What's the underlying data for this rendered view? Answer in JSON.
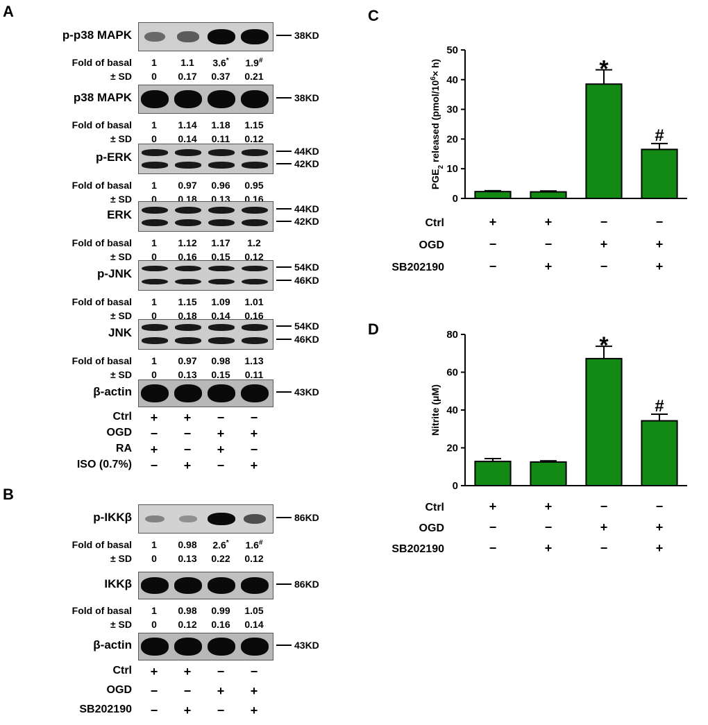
{
  "panels": {
    "A": "A",
    "B": "B",
    "C": "C",
    "D": "D"
  },
  "colors": {
    "bar": "#138a13",
    "bar_edge": "#000000"
  },
  "panelA": {
    "blots": [
      {
        "label": "p-p38 MAPK",
        "kd": [
          "38KD"
        ],
        "fold": {
          "label": "Fold of basal",
          "values": [
            "1",
            "1.1",
            "3.6",
            "1.9"
          ],
          "marks": [
            "",
            "",
            "*",
            "#"
          ]
        },
        "sd": {
          "label": "± SD",
          "values": [
            "0",
            "0.17",
            "0.37",
            "0.21"
          ]
        }
      },
      {
        "label": "p38 MAPK",
        "kd": [
          "38KD"
        ],
        "fold": {
          "label": "Fold of basal",
          "values": [
            "1",
            "1.14",
            "1.18",
            "1.15"
          ],
          "marks": [
            "",
            "",
            "",
            ""
          ]
        },
        "sd": {
          "label": "± SD",
          "values": [
            "0",
            "0.14",
            "0.11",
            "0.12"
          ]
        }
      },
      {
        "label": "p-ERK",
        "kd": [
          "44KD",
          "42KD"
        ],
        "fold": {
          "label": "Fold of basal",
          "values": [
            "1",
            "0.97",
            "0.96",
            "0.95"
          ],
          "marks": [
            "",
            "",
            "",
            ""
          ]
        },
        "sd": {
          "label": "± SD",
          "values": [
            "0",
            "0.18",
            "0.13",
            "0.16"
          ]
        }
      },
      {
        "label": "ERK",
        "kd": [
          "44KD",
          "42KD"
        ],
        "fold": {
          "label": "Fold of basal",
          "values": [
            "1",
            "1.12",
            "1.17",
            "1.2"
          ],
          "marks": [
            "",
            "",
            "",
            ""
          ]
        },
        "sd": {
          "label": "± SD",
          "values": [
            "0",
            "0.16",
            "0.15",
            "0.12"
          ]
        }
      },
      {
        "label": "p-JNK",
        "kd": [
          "54KD",
          "46KD"
        ],
        "fold": {
          "label": "Fold of basal",
          "values": [
            "1",
            "1.15",
            "1.09",
            "1.01"
          ],
          "marks": [
            "",
            "",
            "",
            ""
          ]
        },
        "sd": {
          "label": "± SD",
          "values": [
            "0",
            "0.18",
            "0.14",
            "0.16"
          ]
        }
      },
      {
        "label": "JNK",
        "kd": [
          "54KD",
          "46KD"
        ],
        "fold": {
          "label": "Fold of basal",
          "values": [
            "1",
            "0.97",
            "0.98",
            "1.13"
          ],
          "marks": [
            "",
            "",
            "",
            ""
          ]
        },
        "sd": {
          "label": "± SD",
          "values": [
            "0",
            "0.13",
            "0.15",
            "0.11"
          ]
        }
      },
      {
        "label": "β-actin",
        "kd": [
          "43KD"
        ]
      }
    ],
    "conditions": [
      {
        "label": "Ctrl",
        "values": [
          "+",
          "+",
          "−",
          "−"
        ]
      },
      {
        "label": "OGD",
        "values": [
          "−",
          "−",
          "+",
          "+"
        ]
      },
      {
        "label": "RA",
        "values": [
          "+",
          "−",
          "+",
          "−"
        ]
      },
      {
        "label": "ISO (0.7%)",
        "values": [
          "−",
          "+",
          "−",
          "+"
        ]
      }
    ]
  },
  "panelB": {
    "blots": [
      {
        "label": "p-IKKβ",
        "kd": [
          "86KD"
        ],
        "fold": {
          "label": "Fold of basal",
          "values": [
            "1",
            "0.98",
            "2.6",
            "1.6"
          ],
          "marks": [
            "",
            "",
            "*",
            "#"
          ]
        },
        "sd": {
          "label": "± SD",
          "values": [
            "0",
            "0.13",
            "0.22",
            "0.12"
          ]
        }
      },
      {
        "label": "IKKβ",
        "kd": [
          "86KD"
        ],
        "fold": {
          "label": "Fold of basal",
          "values": [
            "1",
            "0.98",
            "0.99",
            "1.05"
          ],
          "marks": [
            "",
            "",
            "",
            ""
          ]
        },
        "sd": {
          "label": "± SD",
          "values": [
            "0",
            "0.12",
            "0.16",
            "0.14"
          ]
        }
      },
      {
        "label": "β-actin",
        "kd": [
          "43KD"
        ]
      }
    ],
    "conditions": [
      {
        "label": "Ctrl",
        "values": [
          "+",
          "+",
          "−",
          "−"
        ]
      },
      {
        "label": "OGD",
        "values": [
          "−",
          "−",
          "+",
          "+"
        ]
      },
      {
        "label": "SB202190",
        "values": [
          "−",
          "+",
          "−",
          "+"
        ]
      }
    ]
  },
  "chart_data": [
    {
      "type": "bar",
      "panel": "C",
      "ylabel": "PGE2 released (pmol/10^6 × h)",
      "ylabel_parts": {
        "a": "PGE",
        "sub": "2",
        "b": " released (pmol/10",
        "sup": "6",
        "c": "× h)"
      },
      "ylim": [
        0,
        50
      ],
      "yticks": [
        "0",
        "10",
        "20",
        "30",
        "40",
        "50"
      ],
      "yticks_values": [
        0,
        10,
        20,
        30,
        40,
        50
      ],
      "values": [
        2.3,
        2.2,
        38.5,
        16.5
      ],
      "errors": [
        0.3,
        0.3,
        4.8,
        2.0
      ],
      "annotations": [
        "",
        "",
        "*",
        "#"
      ],
      "conditions": [
        {
          "label": "Ctrl",
          "values": [
            "+",
            "+",
            "−",
            "−"
          ]
        },
        {
          "label": "OGD",
          "values": [
            "−",
            "−",
            "+",
            "+"
          ]
        },
        {
          "label": "SB202190",
          "values": [
            "−",
            "+",
            "−",
            "+"
          ]
        }
      ]
    },
    {
      "type": "bar",
      "panel": "D",
      "ylabel": "Nitrite (μM)",
      "ylim": [
        0,
        80
      ],
      "yticks": [
        "0",
        "20",
        "40",
        "60",
        "80"
      ],
      "yticks_values": [
        0,
        20,
        40,
        60,
        80
      ],
      "values": [
        12.8,
        12.5,
        67.2,
        34.3
      ],
      "errors": [
        1.5,
        0.6,
        6.5,
        3.5
      ],
      "annotations": [
        "",
        "",
        "*",
        "#"
      ],
      "conditions": [
        {
          "label": "Ctrl",
          "values": [
            "+",
            "+",
            "−",
            "−"
          ]
        },
        {
          "label": "OGD",
          "values": [
            "−",
            "−",
            "+",
            "+"
          ]
        },
        {
          "label": "SB202190",
          "values": [
            "−",
            "+",
            "−",
            "+"
          ]
        }
      ]
    }
  ]
}
